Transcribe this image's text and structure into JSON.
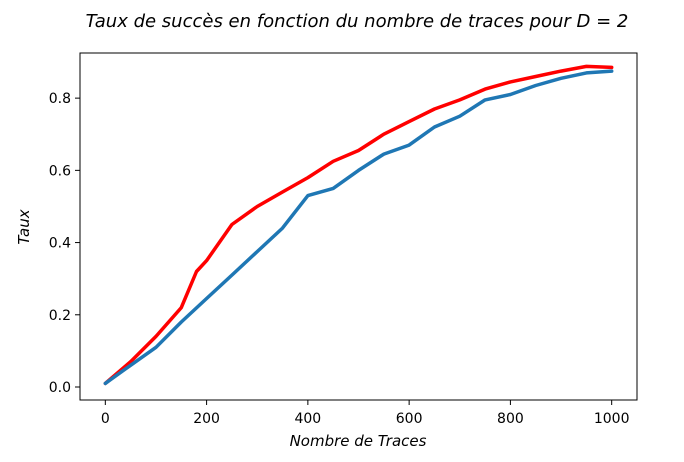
{
  "chart_data": {
    "type": "line",
    "title": "Taux de succès en fonction du nombre de traces pour D = 2",
    "xlabel": "Nombre de Traces",
    "ylabel": "Taux",
    "xlim": [
      -50,
      1050
    ],
    "ylim": [
      -0.036,
      0.925
    ],
    "xticks": [
      0,
      200,
      400,
      600,
      800,
      1000
    ],
    "yticks": [
      0.0,
      0.2,
      0.4,
      0.6,
      0.8
    ],
    "xtick_labels": [
      "0",
      "200",
      "400",
      "600",
      "800",
      "1000"
    ],
    "ytick_labels": [
      "0.0",
      "0.2",
      "0.4",
      "0.6",
      "0.8"
    ],
    "grid": false,
    "series": [
      {
        "color": "#ff0000",
        "x": [
          0,
          50,
          100,
          150,
          180,
          200,
          250,
          300,
          350,
          400,
          450,
          500,
          550,
          600,
          650,
          700,
          750,
          800,
          850,
          900,
          950,
          1000
        ],
        "y": [
          0.01,
          0.07,
          0.14,
          0.22,
          0.32,
          0.35,
          0.45,
          0.5,
          0.54,
          0.58,
          0.625,
          0.655,
          0.7,
          0.735,
          0.77,
          0.795,
          0.825,
          0.845,
          0.86,
          0.875,
          0.888,
          0.885
        ]
      },
      {
        "color": "#1f77b4",
        "x": [
          0,
          50,
          100,
          150,
          200,
          250,
          300,
          350,
          400,
          450,
          500,
          550,
          600,
          650,
          700,
          750,
          800,
          850,
          900,
          950,
          1000
        ],
        "y": [
          0.01,
          0.06,
          0.11,
          0.18,
          0.245,
          0.31,
          0.375,
          0.44,
          0.53,
          0.55,
          0.6,
          0.645,
          0.67,
          0.72,
          0.75,
          0.795,
          0.81,
          0.835,
          0.855,
          0.87,
          0.875
        ]
      }
    ]
  }
}
